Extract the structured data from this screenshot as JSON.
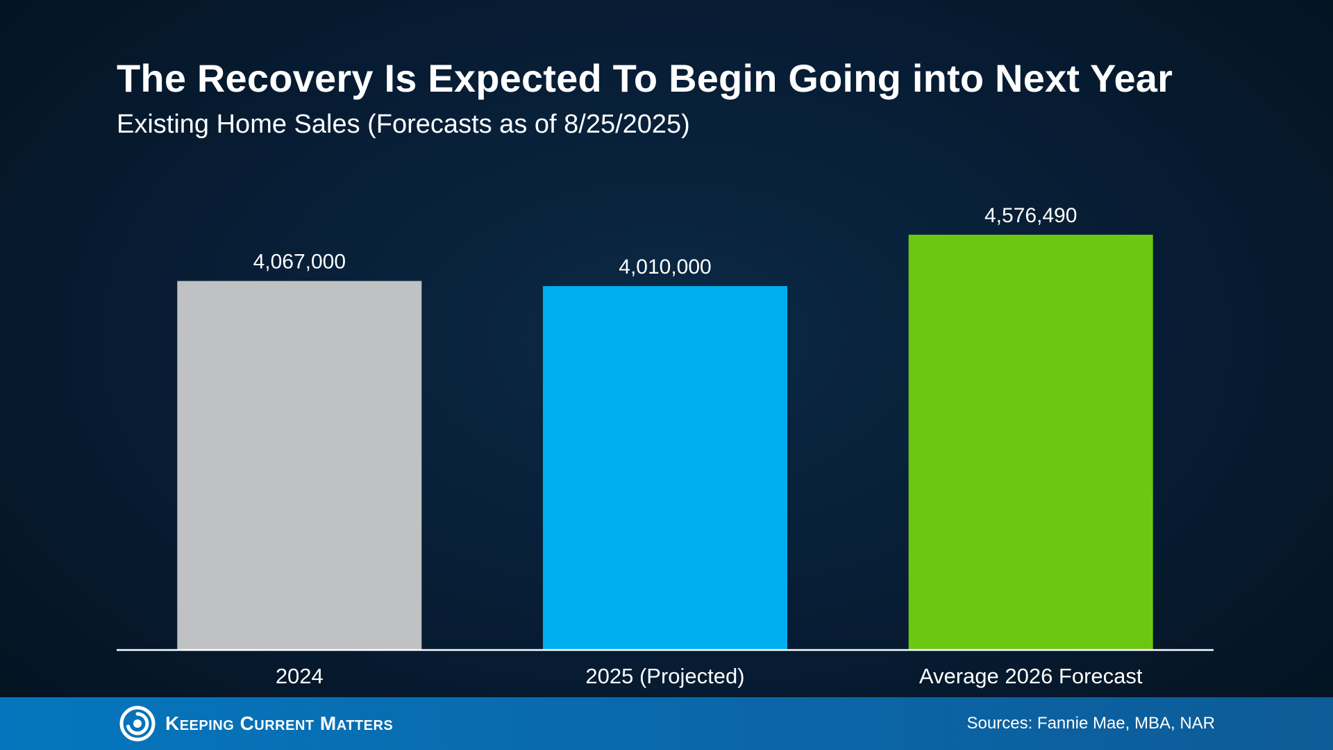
{
  "slide": {
    "title": "The Recovery Is Expected To Begin Going into Next Year",
    "subtitle": "Existing Home Sales (Forecasts as of 8/25/2025)"
  },
  "chart_data": {
    "type": "bar",
    "categories": [
      "2024",
      "2025 (Projected)",
      "Average 2026 Forecast"
    ],
    "values": [
      4067000,
      4010000,
      4576490
    ],
    "data_labels": [
      "4,067,000",
      "4,010,000",
      "4,576,490"
    ],
    "colors": [
      "#bfc1c2",
      "#00aeef",
      "#6cc712"
    ],
    "title": "The Recovery Is Expected To Begin Going into Next Year",
    "subtitle": "Existing Home Sales (Forecasts as of 8/25/2025)",
    "xlabel": "",
    "ylabel": "",
    "ylim": [
      0,
      4576490
    ],
    "grid": false,
    "legend": "none"
  },
  "footer": {
    "brand": "Keeping Current Matters",
    "sources": "Sources: Fannie Mae, MBA, NAR"
  },
  "icons": {
    "logo": "swirl-logo-icon"
  }
}
